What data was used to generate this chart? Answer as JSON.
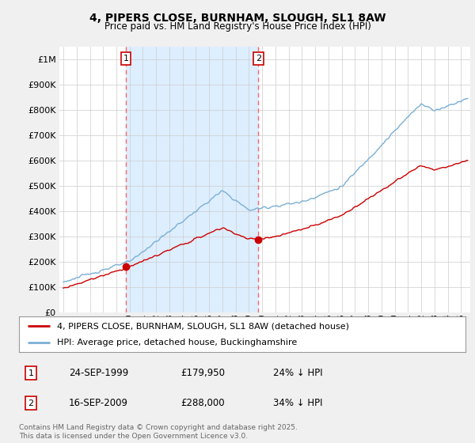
{
  "title": "4, PIPERS CLOSE, BURNHAM, SLOUGH, SL1 8AW",
  "subtitle": "Price paid vs. HM Land Registry's House Price Index (HPI)",
  "ytick_values": [
    0,
    100000,
    200000,
    300000,
    400000,
    500000,
    600000,
    700000,
    800000,
    900000,
    1000000
  ],
  "ylim": [
    0,
    1050000
  ],
  "xlim_start": 1994.7,
  "xlim_end": 2025.7,
  "sale1_year": 1999.73,
  "sale1_price": 179950,
  "sale2_year": 2009.71,
  "sale2_price": 288000,
  "legend_house": "4, PIPERS CLOSE, BURNHAM, SLOUGH, SL1 8AW (detached house)",
  "legend_hpi": "HPI: Average price, detached house, Buckinghamshire",
  "footer": "Contains HM Land Registry data © Crown copyright and database right 2025.\nThis data is licensed under the Open Government Licence v3.0.",
  "house_color": "#cc0000",
  "hpi_color": "#7bafd4",
  "shade_color": "#ddeeff",
  "vline_color": "#ff6666",
  "background_color": "#f0f0f0",
  "plot_bg_color": "#ffffff",
  "grid_color": "#cccccc"
}
